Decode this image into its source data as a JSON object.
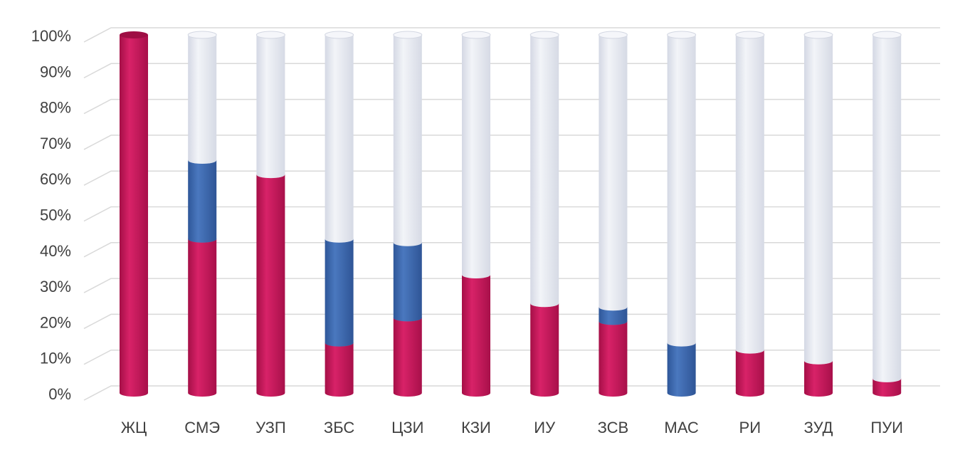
{
  "chart_data": {
    "type": "bar",
    "stacked": true,
    "style": "3d-cylinder",
    "title": "",
    "xlabel": "",
    "ylabel": "",
    "ylim": [
      0,
      100
    ],
    "y_ticks": [
      "0%",
      "10%",
      "20%",
      "30%",
      "40%",
      "50%",
      "60%",
      "70%",
      "80%",
      "90%",
      "100%"
    ],
    "grid": true,
    "legend": "none",
    "categories": [
      "ЖЦ",
      "СМЭ",
      "УЗП",
      "ЗБС",
      "ЦЗИ",
      "КЗИ",
      "ИУ",
      "ЗСВ",
      "МАС",
      "РИ",
      "ЗУД",
      "ПУИ"
    ],
    "series": [
      {
        "color": "#c8185a",
        "values": [
          100,
          43,
          61,
          14,
          21,
          33,
          25,
          20,
          0,
          12,
          9,
          4
        ]
      },
      {
        "color": "#3d6bb0",
        "values": [
          0,
          22,
          0,
          29,
          21,
          0,
          0,
          4,
          14,
          0,
          0,
          0
        ]
      },
      {
        "color": "#e3e6ef",
        "values": [
          0,
          35,
          39,
          57,
          58,
          67,
          75,
          76,
          86,
          88,
          91,
          96
        ]
      }
    ]
  }
}
